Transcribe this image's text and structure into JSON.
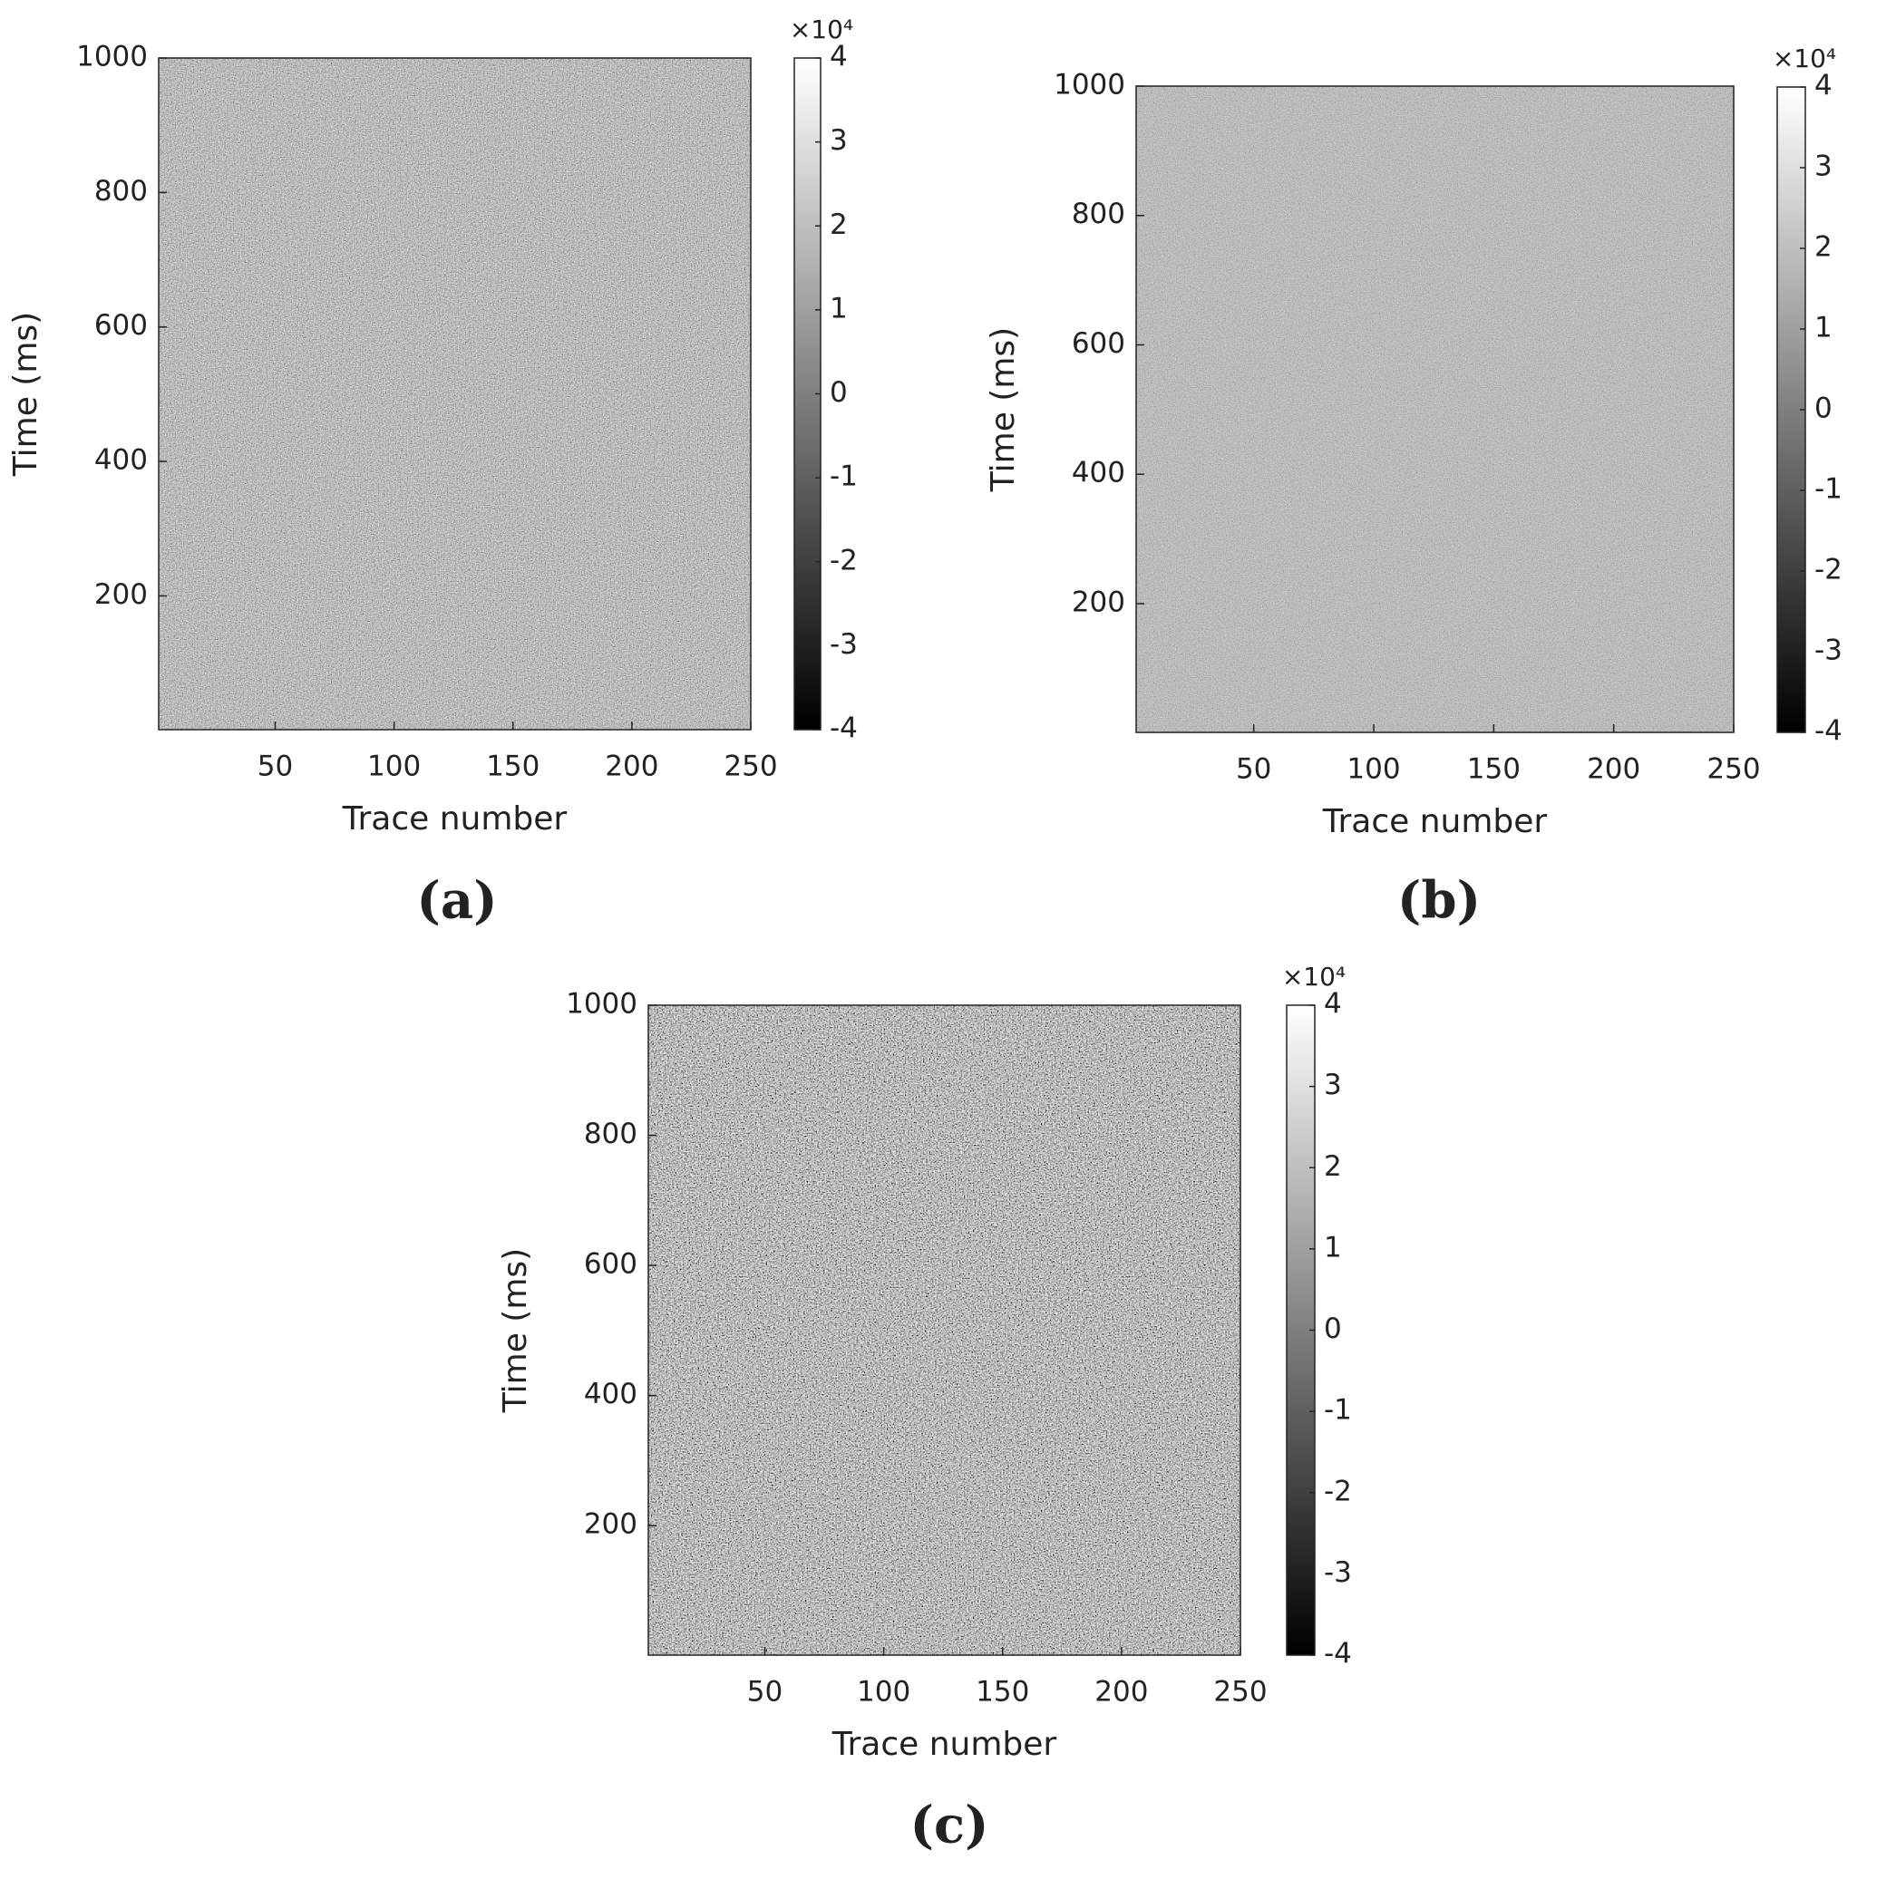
{
  "chart_data": [
    {
      "type": "image",
      "panel_label": "(a)",
      "xlabel": "Trace number",
      "ylabel": "Time (ms)",
      "xlim": [
        1,
        250
      ],
      "xticks": [
        50,
        100,
        150,
        200,
        250
      ],
      "ylim": [
        1,
        1000
      ],
      "yticks": [
        200,
        400,
        600,
        800,
        1000
      ],
      "colormap": "gray",
      "clim": [
        -4,
        4
      ],
      "cticks": [
        -4,
        -3,
        -2,
        -1,
        0,
        1,
        2,
        3,
        4
      ],
      "colorbar_exponent": "×10⁴"
    },
    {
      "type": "image",
      "panel_label": "(b)",
      "xlabel": "Trace number",
      "ylabel": "Time (ms)",
      "xlim": [
        1,
        250
      ],
      "xticks": [
        50,
        100,
        150,
        200,
        250
      ],
      "ylim": [
        1,
        1000
      ],
      "yticks": [
        200,
        400,
        600,
        800,
        1000
      ],
      "colormap": "gray",
      "clim": [
        -4,
        4
      ],
      "cticks": [
        -4,
        -3,
        -2,
        -1,
        0,
        1,
        2,
        3,
        4
      ],
      "colorbar_exponent": "×10⁴"
    },
    {
      "type": "image",
      "panel_label": "(c)",
      "xlabel": "Trace number",
      "ylabel": "Time (ms)",
      "xlim": [
        1,
        250
      ],
      "xticks": [
        50,
        100,
        150,
        200,
        250
      ],
      "ylim": [
        1,
        1000
      ],
      "yticks": [
        200,
        400,
        600,
        800,
        1000
      ],
      "colormap": "gray",
      "clim": [
        -4,
        4
      ],
      "cticks": [
        -4,
        -3,
        -2,
        -1,
        0,
        1,
        2,
        3,
        4
      ],
      "colorbar_exponent": "×10⁴"
    }
  ]
}
